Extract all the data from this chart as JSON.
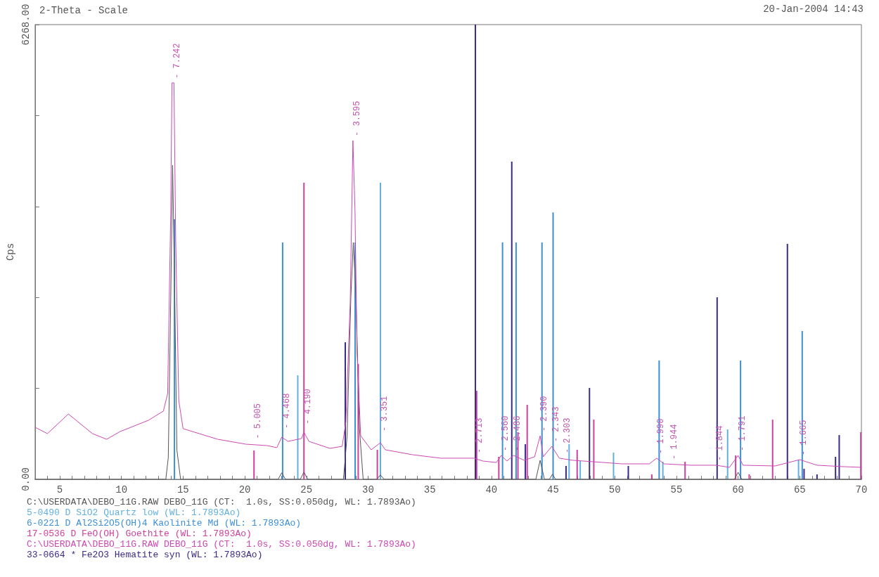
{
  "chart_data": {
    "type": "line",
    "xlabel": "2-Theta - Scale",
    "ylabel": "Cps",
    "xlim": [
      3,
      70
    ],
    "ylim": [
      0,
      6268
    ],
    "xticks": [
      {
        "value": 3,
        "label": null
      },
      {
        "value": 4,
        "label": null
      },
      5,
      {
        "value": 6,
        "label": null
      },
      {
        "value": 7,
        "label": null
      },
      {
        "value": 8,
        "label": null
      },
      {
        "value": 9,
        "label": null
      },
      10,
      {
        "value": 11,
        "label": null
      },
      {
        "value": 12,
        "label": null
      },
      {
        "value": 13,
        "label": null
      },
      {
        "value": 14,
        "label": null
      },
      15,
      {
        "value": 16,
        "label": null
      },
      {
        "value": 17,
        "label": null
      },
      {
        "value": 18,
        "label": null
      },
      {
        "value": 19,
        "label": null
      },
      20,
      {
        "value": 21,
        "label": null
      },
      {
        "value": 22,
        "label": null
      },
      {
        "value": 23,
        "label": null
      },
      {
        "value": 24,
        "label": null
      },
      25,
      {
        "value": 26,
        "label": null
      },
      {
        "value": 27,
        "label": null
      },
      {
        "value": 28,
        "label": null
      },
      {
        "value": 29,
        "label": null
      },
      30,
      {
        "value": 31,
        "label": null
      },
      {
        "value": 32,
        "label": null
      },
      {
        "value": 33,
        "label": null
      },
      {
        "value": 34,
        "label": null
      },
      35,
      {
        "value": 36,
        "label": null
      },
      {
        "value": 37,
        "label": null
      },
      {
        "value": 38,
        "label": null
      },
      {
        "value": 39,
        "label": null
      },
      40,
      {
        "value": 41,
        "label": null
      },
      {
        "value": 42,
        "label": null
      },
      {
        "value": 43,
        "label": null
      },
      {
        "value": 44,
        "label": null
      },
      45,
      {
        "value": 46,
        "label": null
      },
      {
        "value": 47,
        "label": null
      },
      {
        "value": 48,
        "label": null
      },
      {
        "value": 49,
        "label": null
      },
      50,
      {
        "value": 51,
        "label": null
      },
      {
        "value": 52,
        "label": null
      },
      {
        "value": 53,
        "label": null
      },
      {
        "value": 54,
        "label": null
      },
      55,
      {
        "value": 56,
        "label": null
      },
      {
        "value": 57,
        "label": null
      },
      {
        "value": 58,
        "label": null
      },
      {
        "value": 59,
        "label": null
      },
      60,
      {
        "value": 61,
        "label": null
      },
      {
        "value": 62,
        "label": null
      },
      {
        "value": 63,
        "label": null
      },
      {
        "value": 64,
        "label": null
      },
      65,
      {
        "value": 66,
        "label": null
      },
      {
        "value": 67,
        "label": null
      },
      {
        "value": 68,
        "label": null
      },
      {
        "value": 69,
        "label": null
      },
      70
    ],
    "yticks": [
      {
        "value": 0,
        "label": "0.00"
      },
      {
        "value": 1253.6,
        "label": null
      },
      {
        "value": 2507.2,
        "label": null
      },
      {
        "value": 3760.8,
        "label": null
      },
      {
        "value": 5014.4,
        "label": null
      },
      {
        "value": 6268,
        "label": "6268.00"
      }
    ],
    "grid": false,
    "legend": "bottom",
    "marker": "none",
    "line_style": "solid",
    "series": [
      {
        "name": "C:\\USERDATA\\DEBO_11G.RAW DEBO_11G (CT:  1.0s, SS:0.050dg, WL: 1.7893Ao)",
        "color": "#555555",
        "x": [
          3,
          13.6,
          13.8,
          14.0,
          14.15,
          14.3,
          14.5,
          14.8,
          22.7,
          23.0,
          23.3,
          24.5,
          24.8,
          25.1,
          28.0,
          28.3,
          28.6,
          28.8,
          29.0,
          29.3,
          29.6,
          30.7,
          31.0,
          31.3,
          43.6,
          43.95,
          44.3,
          44.7,
          44.95,
          45.2,
          59.7,
          60.0,
          60.3,
          70
        ],
        "values": [
          0,
          0,
          300,
          2500,
          4330,
          2800,
          400,
          0,
          0,
          90,
          0,
          0,
          100,
          0,
          0,
          600,
          2500,
          3265,
          2600,
          700,
          0,
          0,
          60,
          0,
          0,
          262,
          0,
          0,
          70,
          0,
          0,
          97,
          0,
          0
        ]
      },
      {
        "name": "5-0490 D SiO2 Quartz low (WL: 1.7893Ao)",
        "type": "bar",
        "color": "#62b0e0",
        "x": [
          24.3,
          31.0,
          46.3,
          47.2,
          49.9,
          53.9,
          59.15,
          64.9
        ],
        "values": [
          1434,
          4088,
          484,
          252,
          368,
          242,
          688,
          271
        ]
      },
      {
        "name": "6-0221 D Al2Si2O5(OH)4 Kaolinite Md (WL: 1.7893Ao)",
        "type": "bar",
        "color": "#3d8fd6",
        "x": [
          14.3,
          23.07,
          28.95,
          40.9,
          42.0,
          44.1,
          45.0,
          53.6,
          60.2,
          65.2
        ],
        "values": [
          3585,
          3265,
          3265,
          3265,
          3265,
          3265,
          3680,
          1637,
          1637,
          2044
        ]
      },
      {
        "name": "17-0536 D FeO(OH) Goethite (WL: 1.7893Ao)",
        "type": "bar",
        "color": "#d0409f",
        "x": [
          20.75,
          24.8,
          29.2,
          30.75,
          38.8,
          40.6,
          42.15,
          42.9,
          46.95,
          48.3,
          53.0,
          55.7,
          59.8,
          60.9,
          62.8,
          69.95
        ],
        "values": [
          397,
          4088,
          1590,
          407,
          1220,
          310,
          650,
          1027,
          407,
          823,
          68,
          242,
          329,
          68,
          823,
          650
        ]
      },
      {
        "name": "C:\\USERDATA\\DEBO_11G.RAW DEBO_11G (CT:  1.0s, SS:0.050dg, WL: 1.7893Ao)",
        "color": "#cc49b4",
        "x": [
          3.0,
          4.0,
          5.7,
          7.65,
          8.8,
          9.9,
          12.2,
          13.4,
          13.75,
          14.0,
          14.1,
          14.26,
          14.4,
          14.65,
          15.0,
          17.8,
          20.1,
          21.8,
          22.6,
          23.0,
          23.5,
          24.6,
          24.8,
          25.2,
          26.9,
          27.9,
          28.2,
          28.55,
          28.77,
          28.94,
          29.1,
          29.4,
          30.25,
          31.0,
          31.4,
          33.6,
          35.9,
          38.6,
          39.3,
          40.4,
          40.8,
          41.25,
          41.8,
          42.66,
          43.5,
          43.95,
          44.2,
          44.9,
          45.5,
          46.6,
          48.3,
          50.6,
          52.8,
          53.4,
          54.0,
          56.2,
          58.2,
          59.3,
          60.0,
          60.4,
          63.0,
          65.0,
          66.4,
          68.6,
          70
        ],
        "values": [
          717,
          630,
          900,
          630,
          552,
          659,
          814,
          940,
          1182,
          3700,
          5465,
          5465,
          3313,
          1085,
          698,
          552,
          484,
          465,
          436,
          581,
          523,
          562,
          649,
          523,
          426,
          455,
          794,
          2441,
          4670,
          3700,
          1763,
          600,
          407,
          504,
          407,
          339,
          291,
          291,
          252,
          232,
          329,
          252,
          329,
          262,
          310,
          600,
          310,
          455,
          291,
          262,
          242,
          213,
          213,
          291,
          213,
          194,
          194,
          165,
          329,
          194,
          184,
          271,
          194,
          174,
          165
        ]
      },
      {
        "name": "33-0664 * Fe2O3 Hematite syn (WL: 1.7893Ao)",
        "type": "bar",
        "color": "#3b2a86",
        "x": [
          28.15,
          38.7,
          41.65,
          42.75,
          46.05,
          47.95,
          51.1,
          58.3,
          64.0,
          65.35,
          66.4,
          67.9,
          68.2
        ],
        "values": [
          1889,
          6268,
          4380,
          484,
          184,
          1260,
          184,
          2509,
          3245,
          145,
          68,
          310,
          610
        ]
      }
    ],
    "annotations": [
      "20-Jan-2004 14:43",
      {
        "text": "- 7.242",
        "x": 14.2,
        "y": 5465
      },
      {
        "text": "- 5.005",
        "x": 20.75,
        "y": 500
      },
      {
        "text": "- 4.468",
        "x": 23.07,
        "y": 640
      },
      {
        "text": "- 4.190",
        "x": 24.8,
        "y": 700
      },
      {
        "text": "- 3.595",
        "x": 28.8,
        "y": 4670
      },
      {
        "text": "- 3.351",
        "x": 31.0,
        "y": 600
      },
      {
        "text": "- 2.713",
        "x": 38.7,
        "y": 300
      },
      {
        "text": "- 2.560",
        "x": 40.8,
        "y": 330
      },
      {
        "text": "- 2.486",
        "x": 41.8,
        "y": 330
      },
      {
        "text": "- 2.390",
        "x": 43.95,
        "y": 600
      },
      {
        "text": "- 2.343",
        "x": 44.9,
        "y": 455
      },
      {
        "text": "- 2.303",
        "x": 45.8,
        "y": 300
      },
      {
        "text": "- 1.990",
        "x": 53.4,
        "y": 291
      },
      {
        "text": "- 1.944",
        "x": 54.5,
        "y": 213
      },
      {
        "text": "- 1.844",
        "x": 58.2,
        "y": 194
      },
      {
        "text": "- 1.791",
        "x": 60.0,
        "y": 329
      },
      {
        "text": "- 1.665",
        "x": 65.0,
        "y": 271
      }
    ]
  }
}
